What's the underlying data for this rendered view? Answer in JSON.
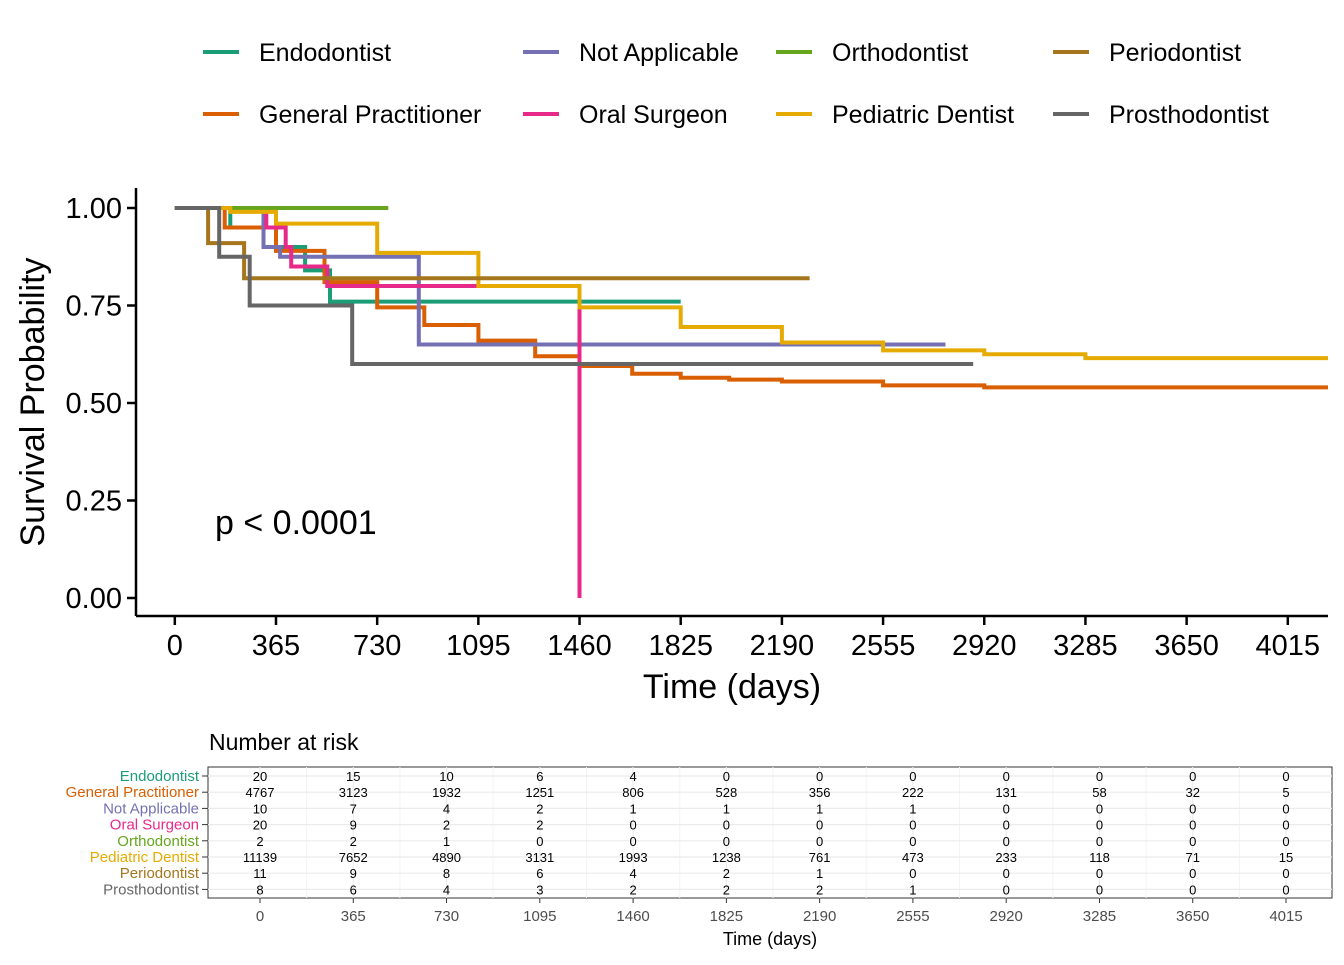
{
  "chart_data": [
    {
      "type": "line",
      "subtype": "kaplan-meier",
      "title": "",
      "xlabel": "Time (days)",
      "ylabel": "Survival Probability",
      "annotation": "p < 0.0001",
      "xlim": [
        -140,
        4160
      ],
      "ylim": [
        0,
        1
      ],
      "xticks": [
        0,
        365,
        730,
        1095,
        1460,
        1825,
        2190,
        2555,
        2920,
        3285,
        3650,
        4015
      ],
      "yticks": [
        0,
        0.25,
        0.5,
        0.75,
        1.0
      ],
      "ytick_labels": [
        "0.00",
        "0.25",
        "0.50",
        "0.75",
        "1.00"
      ],
      "grid": false,
      "legend_position": "top",
      "series": [
        {
          "name": "Endodontist",
          "color": "#1b9e77",
          "x": [
            0,
            200,
            365,
            470,
            560,
            1825
          ],
          "y": [
            1.0,
            0.95,
            0.9,
            0.84,
            0.76,
            0.76
          ]
        },
        {
          "name": "General Practitioner",
          "color": "#d95f02",
          "x": [
            0,
            180,
            365,
            540,
            730,
            900,
            1095,
            1300,
            1460,
            1650,
            1825,
            2000,
            2190,
            2555,
            2920,
            3285,
            3650,
            4160
          ],
          "y": [
            1.0,
            0.95,
            0.89,
            0.81,
            0.745,
            0.7,
            0.66,
            0.62,
            0.595,
            0.575,
            0.565,
            0.56,
            0.555,
            0.545,
            0.54,
            0.54,
            0.54,
            0.54
          ]
        },
        {
          "name": "Not Applicable",
          "color": "#7570b3",
          "x": [
            0,
            320,
            380,
            880,
            2780
          ],
          "y": [
            1.0,
            0.9,
            0.875,
            0.65,
            0.65
          ]
        },
        {
          "name": "Oral Surgeon",
          "color": "#e7298a",
          "x": [
            0,
            330,
            400,
            420,
            550,
            1460,
            1460
          ],
          "y": [
            1.0,
            0.95,
            0.9,
            0.85,
            0.8,
            0.8,
            0.0
          ]
        },
        {
          "name": "Orthodontist",
          "color": "#66a61e",
          "x": [
            0,
            770
          ],
          "y": [
            1.0,
            1.0
          ]
        },
        {
          "name": "Pediatric Dentist",
          "color": "#e6ab02",
          "x": [
            0,
            200,
            365,
            730,
            1095,
            1460,
            1825,
            2190,
            2555,
            2920,
            3285,
            3650,
            4160
          ],
          "y": [
            1.0,
            0.99,
            0.96,
            0.885,
            0.8,
            0.745,
            0.695,
            0.655,
            0.635,
            0.625,
            0.615,
            0.615,
            0.615
          ]
        },
        {
          "name": "Periodontist",
          "color": "#a6761d",
          "x": [
            0,
            120,
            250,
            2290
          ],
          "y": [
            1.0,
            0.91,
            0.82,
            0.82
          ]
        },
        {
          "name": "Prosthodontist",
          "color": "#666666",
          "x": [
            0,
            160,
            270,
            640,
            2880
          ],
          "y": [
            1.0,
            0.875,
            0.75,
            0.6,
            0.6
          ]
        }
      ]
    },
    {
      "type": "table",
      "title": "Number at risk",
      "xlabel": "Time (days)",
      "columns": [
        0,
        365,
        730,
        1095,
        1460,
        1825,
        2190,
        2555,
        2920,
        3285,
        3650,
        4015
      ],
      "rows": [
        {
          "name": "Endodontist",
          "color": "#1b9e77",
          "values": [
            20,
            15,
            10,
            6,
            4,
            0,
            0,
            0,
            0,
            0,
            0,
            0
          ]
        },
        {
          "name": "General Practitioner",
          "color": "#d95f02",
          "values": [
            4767,
            3123,
            1932,
            1251,
            806,
            528,
            356,
            222,
            131,
            58,
            32,
            5
          ]
        },
        {
          "name": "Not Applicable",
          "color": "#7570b3",
          "values": [
            10,
            7,
            4,
            2,
            1,
            1,
            1,
            1,
            0,
            0,
            0,
            0
          ]
        },
        {
          "name": "Oral Surgeon",
          "color": "#e7298a",
          "values": [
            20,
            9,
            2,
            2,
            0,
            0,
            0,
            0,
            0,
            0,
            0,
            0
          ]
        },
        {
          "name": "Orthodontist",
          "color": "#66a61e",
          "values": [
            2,
            2,
            1,
            0,
            0,
            0,
            0,
            0,
            0,
            0,
            0,
            0
          ]
        },
        {
          "name": "Pediatric Dentist",
          "color": "#e6ab02",
          "values": [
            11139,
            7652,
            4890,
            3131,
            1993,
            1238,
            761,
            473,
            233,
            118,
            71,
            15
          ]
        },
        {
          "name": "Periodontist",
          "color": "#a6761d",
          "values": [
            11,
            9,
            8,
            6,
            4,
            2,
            1,
            0,
            0,
            0,
            0,
            0
          ]
        },
        {
          "name": "Prosthodontist",
          "color": "#666666",
          "values": [
            8,
            6,
            4,
            3,
            2,
            2,
            2,
            1,
            0,
            0,
            0,
            0
          ]
        }
      ]
    }
  ]
}
